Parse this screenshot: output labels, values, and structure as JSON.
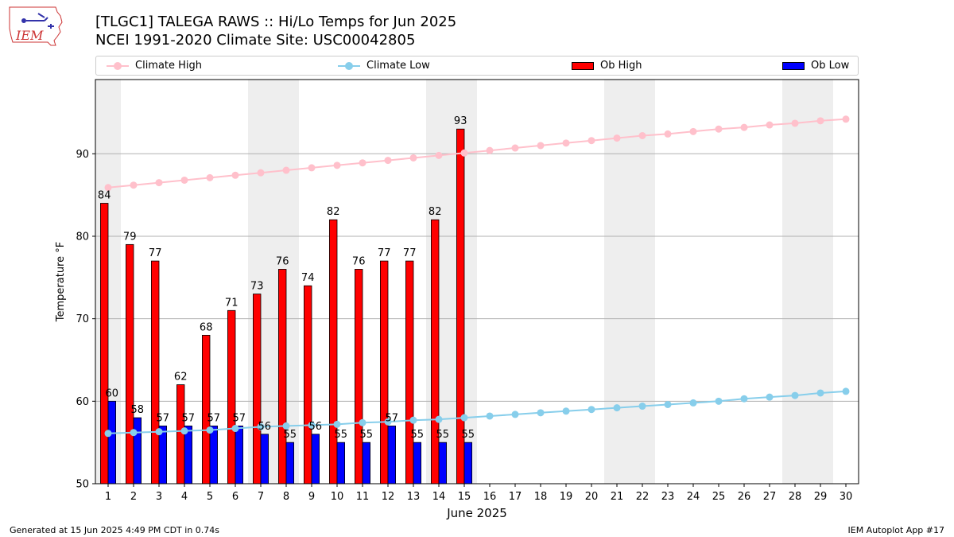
{
  "logo": {
    "text": "IEM"
  },
  "header": {
    "title_line1": "[TLGC1] TALEGA RAWS :: Hi/Lo Temps for Jun 2025",
    "title_line2": "NCEI 1991-2020 Climate Site: USC00042805"
  },
  "legend": {
    "items": [
      {
        "label": "Climate High",
        "color": "#ffc0cb",
        "style": "line-marker"
      },
      {
        "label": "Climate Low",
        "color": "#87ceeb",
        "style": "line-marker"
      },
      {
        "label": "Ob High",
        "color": "#ff0000",
        "style": "bar"
      },
      {
        "label": "Ob Low",
        "color": "#0000ff",
        "style": "bar"
      }
    ]
  },
  "footer": {
    "left": "Generated at 15 Jun 2025 4:49 PM CDT in 0.74s",
    "right": "IEM Autoplot App #17"
  },
  "chart_data": {
    "type": "bar",
    "xlabel": "June 2025",
    "ylabel": "Temperature °F",
    "xlim": [
      0.5,
      30.5
    ],
    "ylim": [
      50,
      99
    ],
    "yticks": [
      50,
      60,
      70,
      80,
      90
    ],
    "grid": "horizontal",
    "legend_placement": "top",
    "categories": [
      "1",
      "2",
      "3",
      "4",
      "5",
      "6",
      "7",
      "8",
      "9",
      "10",
      "11",
      "12",
      "13",
      "14",
      "15",
      "16",
      "17",
      "18",
      "19",
      "20",
      "21",
      "22",
      "23",
      "24",
      "25",
      "26",
      "27",
      "28",
      "29",
      "30"
    ],
    "weekend_shading": [
      [
        1,
        1
      ],
      [
        7,
        8
      ],
      [
        14,
        15
      ],
      [
        21,
        22
      ],
      [
        28,
        29
      ]
    ],
    "weekend_color": "#eeeeee",
    "bar_series": [
      {
        "name": "Ob High",
        "color": "#ff0000",
        "values": [
          84,
          79,
          77,
          62,
          68,
          71,
          73,
          76,
          74,
          82,
          76,
          77,
          77,
          82,
          93
        ]
      },
      {
        "name": "Ob Low",
        "color": "#0000ff",
        "values": [
          60,
          58,
          57,
          57,
          57,
          57,
          56,
          55,
          56,
          55,
          55,
          57,
          55,
          55,
          55
        ]
      }
    ],
    "line_series": [
      {
        "name": "Climate High",
        "color": "#ffc0cb",
        "values": [
          85.9,
          86.2,
          86.5,
          86.8,
          87.1,
          87.4,
          87.7,
          88.0,
          88.3,
          88.6,
          88.9,
          89.2,
          89.5,
          89.8,
          90.1,
          90.4,
          90.7,
          91.0,
          91.3,
          91.6,
          91.9,
          92.2,
          92.4,
          92.7,
          93.0,
          93.2,
          93.5,
          93.7,
          94.0,
          94.2
        ]
      },
      {
        "name": "Climate Low",
        "color": "#87ceeb",
        "values": [
          56.1,
          56.2,
          56.3,
          56.4,
          56.5,
          56.7,
          56.9,
          57.0,
          57.1,
          57.2,
          57.4,
          57.5,
          57.7,
          57.8,
          58.0,
          58.2,
          58.4,
          58.6,
          58.8,
          59.0,
          59.2,
          59.4,
          59.6,
          59.8,
          60.0,
          60.3,
          60.5,
          60.7,
          61.0,
          61.2
        ]
      }
    ]
  }
}
